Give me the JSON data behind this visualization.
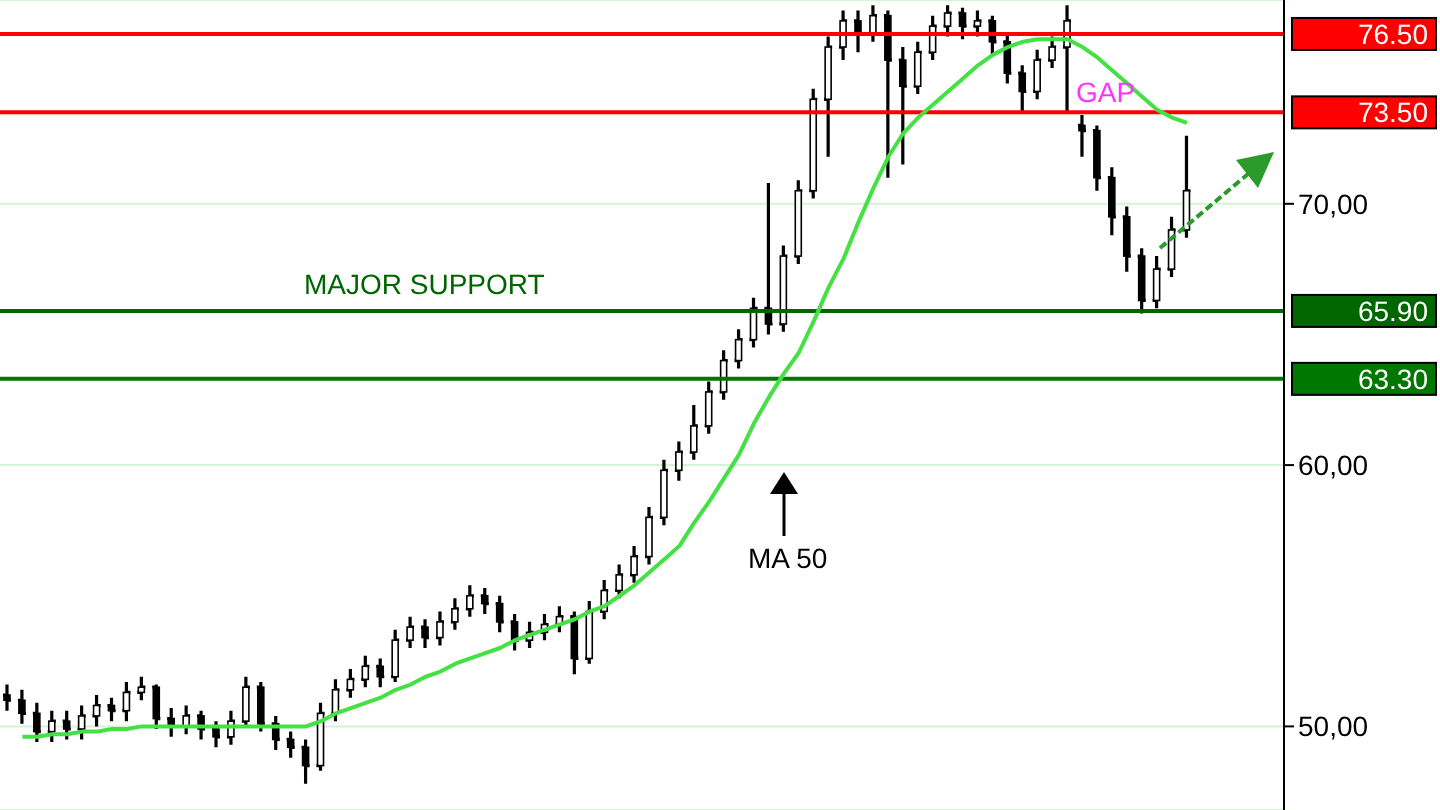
{
  "chart_data": {
    "type": "candlestick",
    "color": "#000000",
    "categories": [
      null,
      null,
      null,
      null,
      null,
      null,
      null,
      null,
      null,
      null,
      null,
      null,
      null,
      null,
      null,
      null,
      null,
      null,
      null,
      null,
      null,
      null,
      null,
      null,
      null,
      null,
      null,
      null,
      null,
      null,
      null,
      null,
      null,
      null,
      null,
      null,
      null,
      null,
      null,
      null,
      null,
      null,
      null,
      null,
      null,
      null,
      null,
      null,
      null,
      null,
      null,
      null,
      null,
      null,
      null,
      null,
      null,
      null,
      null,
      null,
      null,
      null,
      null,
      null,
      null,
      null,
      null,
      null,
      null,
      null,
      null,
      null,
      null,
      null,
      null,
      null,
      null,
      null,
      null,
      null,
      null,
      null,
      null,
      null,
      null,
      null
    ],
    "ohlc": [
      [
        51.2,
        51.6,
        50.6,
        51.0
      ],
      [
        51.0,
        51.4,
        50.1,
        50.5
      ],
      [
        50.5,
        50.9,
        49.4,
        49.8
      ],
      [
        49.8,
        50.6,
        49.4,
        50.2
      ],
      [
        50.2,
        50.6,
        49.5,
        49.9
      ],
      [
        49.9,
        50.8,
        49.5,
        50.4
      ],
      [
        50.4,
        51.2,
        50.0,
        50.8
      ],
      [
        50.8,
        51.1,
        50.2,
        50.6
      ],
      [
        50.6,
        51.7,
        50.2,
        51.3
      ],
      [
        51.3,
        51.9,
        51.0,
        51.5
      ],
      [
        51.5,
        51.6,
        49.9,
        50.3
      ],
      [
        50.3,
        50.7,
        49.6,
        50.0
      ],
      [
        50.0,
        50.8,
        49.7,
        50.4
      ],
      [
        50.4,
        50.6,
        49.5,
        49.9
      ],
      [
        49.9,
        50.2,
        49.2,
        49.6
      ],
      [
        49.6,
        50.6,
        49.3,
        50.2
      ],
      [
        50.2,
        51.9,
        50.0,
        51.5
      ],
      [
        51.5,
        51.7,
        49.8,
        50.1
      ],
      [
        50.1,
        50.4,
        49.1,
        49.5
      ],
      [
        49.5,
        49.8,
        48.8,
        49.2
      ],
      [
        49.2,
        49.5,
        47.8,
        48.5
      ],
      [
        48.5,
        50.9,
        48.3,
        50.5
      ],
      [
        50.5,
        51.8,
        50.2,
        51.4
      ],
      [
        51.4,
        52.2,
        51.1,
        51.8
      ],
      [
        51.8,
        52.7,
        51.5,
        52.3
      ],
      [
        52.3,
        52.6,
        51.5,
        51.9
      ],
      [
        51.9,
        53.7,
        51.7,
        53.3
      ],
      [
        53.3,
        54.2,
        53.0,
        53.8
      ],
      [
        53.8,
        54.1,
        53.0,
        53.4
      ],
      [
        53.4,
        54.4,
        53.1,
        54.0
      ],
      [
        54.0,
        54.9,
        53.7,
        54.5
      ],
      [
        54.5,
        55.4,
        54.2,
        55.0
      ],
      [
        55.0,
        55.3,
        54.3,
        54.7
      ],
      [
        54.7,
        55.0,
        53.6,
        54.0
      ],
      [
        54.0,
        54.3,
        52.9,
        53.3
      ],
      [
        53.3,
        54.0,
        53.0,
        53.6
      ],
      [
        53.6,
        54.3,
        53.3,
        53.9
      ],
      [
        53.9,
        54.6,
        53.6,
        54.2
      ],
      [
        54.2,
        54.4,
        52.0,
        52.6
      ],
      [
        52.6,
        54.8,
        52.4,
        54.4
      ],
      [
        54.4,
        55.6,
        54.1,
        55.2
      ],
      [
        55.2,
        56.2,
        54.9,
        55.8
      ],
      [
        55.8,
        56.9,
        55.5,
        56.5
      ],
      [
        56.5,
        58.4,
        56.2,
        58.0
      ],
      [
        58.0,
        60.2,
        57.7,
        59.8
      ],
      [
        59.8,
        60.9,
        59.4,
        60.5
      ],
      [
        60.5,
        62.3,
        60.2,
        61.5
      ],
      [
        61.5,
        63.2,
        61.2,
        62.8
      ],
      [
        62.8,
        64.4,
        62.5,
        64.0
      ],
      [
        64.0,
        65.2,
        63.7,
        64.8
      ],
      [
        64.8,
        66.4,
        64.5,
        66.0
      ],
      [
        66.0,
        70.8,
        65.0,
        65.4
      ],
      [
        65.4,
        68.4,
        65.1,
        68.0
      ],
      [
        68.0,
        70.9,
        67.7,
        70.5
      ],
      [
        70.5,
        74.4,
        70.2,
        74.0
      ],
      [
        74.0,
        76.4,
        71.8,
        76.0
      ],
      [
        76.0,
        77.4,
        75.5,
        77.0
      ],
      [
        77.0,
        77.4,
        75.8,
        76.5
      ],
      [
        76.5,
        77.6,
        76.2,
        77.2
      ],
      [
        77.2,
        77.4,
        71.0,
        75.5
      ],
      [
        75.5,
        76.0,
        71.5,
        74.5
      ],
      [
        74.5,
        76.2,
        74.2,
        75.8
      ],
      [
        75.8,
        77.2,
        75.5,
        76.8
      ],
      [
        76.8,
        77.6,
        76.4,
        77.3
      ],
      [
        77.3,
        77.5,
        76.3,
        76.8
      ],
      [
        76.8,
        77.4,
        76.4,
        77.0
      ],
      [
        77.0,
        77.2,
        75.7,
        76.2
      ],
      [
        76.2,
        76.5,
        74.6,
        75.0
      ],
      [
        75.0,
        75.3,
        73.5,
        74.3
      ],
      [
        74.3,
        75.9,
        74.0,
        75.5
      ],
      [
        75.5,
        76.4,
        75.2,
        76.0
      ],
      [
        76.0,
        77.6,
        73.5,
        77.0
      ],
      [
        73.0,
        73.4,
        71.8,
        72.8
      ],
      [
        72.8,
        73.0,
        70.5,
        71.0
      ],
      [
        71.0,
        71.4,
        68.8,
        69.5
      ],
      [
        69.5,
        69.9,
        67.4,
        68.0
      ],
      [
        68.0,
        68.3,
        65.8,
        66.3
      ],
      [
        66.3,
        68.0,
        66.0,
        67.5
      ],
      [
        67.5,
        69.5,
        67.2,
        69.0
      ],
      [
        69.0,
        72.6,
        68.7,
        70.5
      ],
      null,
      null,
      null,
      null,
      null,
      null
    ],
    "series": [
      {
        "type": "line",
        "color": "#44e044",
        "values": [
          null,
          49.6,
          49.6,
          49.7,
          49.7,
          49.8,
          49.8,
          49.9,
          49.9,
          50.0,
          50.0,
          50.0,
          50.0,
          50.0,
          50.0,
          50.0,
          50.0,
          50.0,
          50.0,
          50.0,
          50.0,
          50.2,
          50.5,
          50.7,
          50.9,
          51.1,
          51.4,
          51.6,
          51.9,
          52.1,
          52.4,
          52.6,
          52.8,
          53.0,
          53.3,
          53.5,
          53.7,
          53.9,
          54.1,
          54.4,
          54.6,
          55.0,
          55.4,
          55.9,
          56.4,
          56.9,
          57.8,
          58.6,
          59.5,
          60.4,
          61.6,
          62.6,
          63.5,
          64.3,
          65.5,
          66.8,
          67.9,
          69.3,
          70.6,
          71.8,
          72.7,
          73.3,
          73.8,
          74.3,
          74.8,
          75.3,
          75.7,
          76.0,
          76.2,
          76.3,
          76.3,
          76.3,
          76.0,
          75.6,
          75.1,
          74.6,
          74.1,
          73.6,
          73.3,
          73.1,
          null,
          null,
          null,
          null,
          null,
          null
        ]
      }
    ],
    "ylim": [
      46.8,
      77.8
    ],
    "yticks": [
      {
        "value": 50,
        "label": "50,00"
      },
      {
        "value": 60,
        "label": "60,00"
      },
      {
        "value": 70,
        "label": "70,00"
      }
    ],
    "grid": "y",
    "ref_lines": [
      {
        "axis": "y",
        "value": 76.5,
        "label": "76.50",
        "color": "#ff0000"
      },
      {
        "axis": "y",
        "value": 73.5,
        "label": "73.50",
        "color": "#ff0000"
      },
      {
        "axis": "y",
        "value": 65.9,
        "label": "65.90",
        "color": "#006600"
      },
      {
        "axis": "y",
        "value": 63.3,
        "label": "63.30",
        "color": "#007700"
      }
    ],
    "annotations": [
      "MAJOR SUPPORT",
      "GAP",
      "MA 50"
    ]
  }
}
